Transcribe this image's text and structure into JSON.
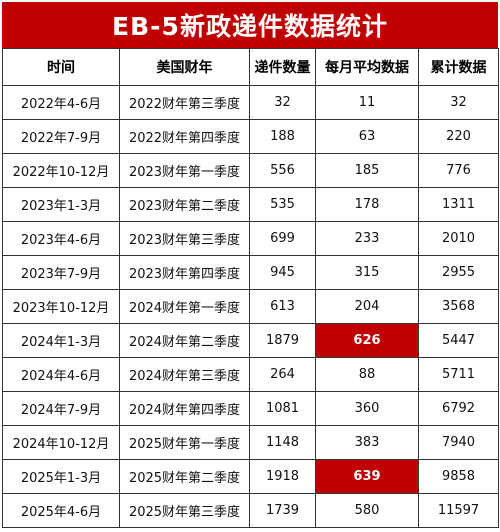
{
  "title": "EB-5新政递件数据统计",
  "headers": [
    "时间",
    "美国财年",
    "递件数量",
    "每月平均数据",
    "累计数据"
  ],
  "highlight_color": "#c00000",
  "rows": [
    {
      "period": "2022年4-6月",
      "fiscal": "2022财年第三季度",
      "count": "32",
      "monthly_avg": "11",
      "cumulative": "32",
      "highlight": false
    },
    {
      "period": "2022年7-9月",
      "fiscal": "2022财年第四季度",
      "count": "188",
      "monthly_avg": "63",
      "cumulative": "220",
      "highlight": false
    },
    {
      "period": "2022年10-12月",
      "fiscal": "2023财年第一季度",
      "count": "556",
      "monthly_avg": "185",
      "cumulative": "776",
      "highlight": false
    },
    {
      "period": "2023年1-3月",
      "fiscal": "2023财年第二季度",
      "count": "535",
      "monthly_avg": "178",
      "cumulative": "1311",
      "highlight": false
    },
    {
      "period": "2023年4-6月",
      "fiscal": "2023财年第三季度",
      "count": "699",
      "monthly_avg": "233",
      "cumulative": "2010",
      "highlight": false
    },
    {
      "period": "2023年7-9月",
      "fiscal": "2023财年第四季度",
      "count": "945",
      "monthly_avg": "315",
      "cumulative": "2955",
      "highlight": false
    },
    {
      "period": "2023年10-12月",
      "fiscal": "2024财年第一季度",
      "count": "613",
      "monthly_avg": "204",
      "cumulative": "3568",
      "highlight": false
    },
    {
      "period": "2024年1-3月",
      "fiscal": "2024财年第二季度",
      "count": "1879",
      "monthly_avg": "626",
      "cumulative": "5447",
      "highlight": true
    },
    {
      "period": "2024年4-6月",
      "fiscal": "2024财年第三季度",
      "count": "264",
      "monthly_avg": "88",
      "cumulative": "5711",
      "highlight": false
    },
    {
      "period": "2024年7-9月",
      "fiscal": "2024财年第四季度",
      "count": "1081",
      "monthly_avg": "360",
      "cumulative": "6792",
      "highlight": false
    },
    {
      "period": "2024年10-12月",
      "fiscal": "2025财年第一季度",
      "count": "1148",
      "monthly_avg": "383",
      "cumulative": "7940",
      "highlight": false
    },
    {
      "period": "2025年1-3月",
      "fiscal": "2025财年第二季度",
      "count": "1918",
      "monthly_avg": "639",
      "cumulative": "9858",
      "highlight": true
    },
    {
      "period": "2025年4-6月",
      "fiscal": "2025财年第三季度",
      "count": "1739",
      "monthly_avg": "580",
      "cumulative": "11597",
      "highlight": false
    }
  ]
}
